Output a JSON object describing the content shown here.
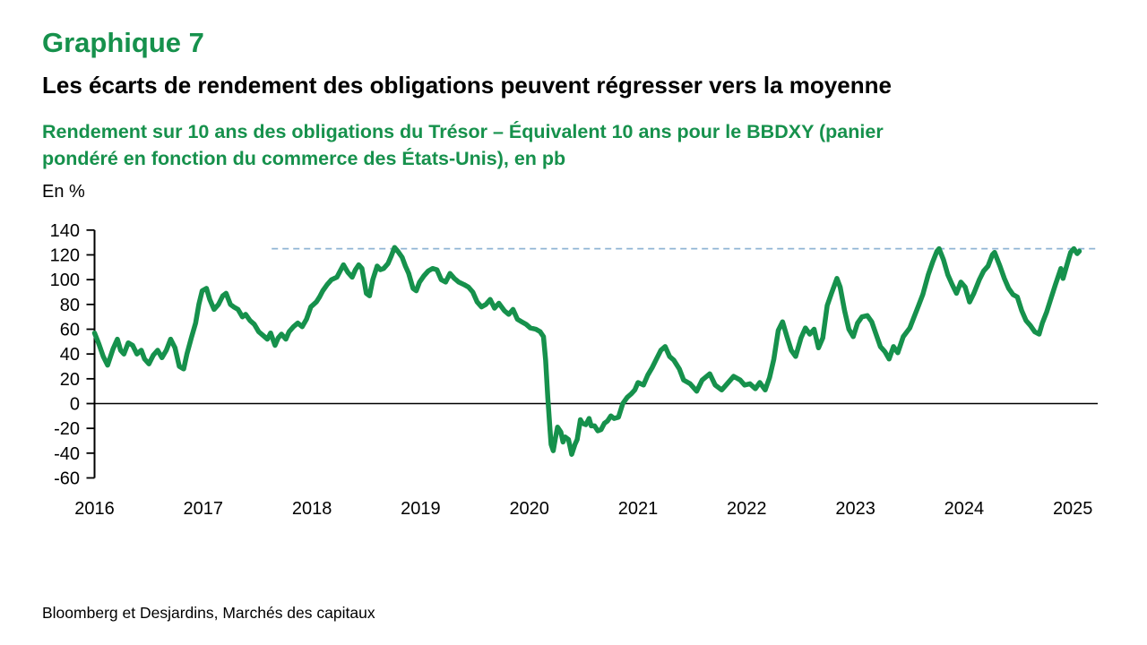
{
  "header": {
    "chart_number": "Graphique 7",
    "title": "Les écarts de rendement des obligations peuvent régresser vers la moyenne",
    "subtitle": "Rendement sur 10 ans des obligations du Trésor – Équivalent 10 ans pour le BBDXY (panier pondéré en fonction du commerce des États-Unis), en pb",
    "unit_label": "En %"
  },
  "footer": {
    "source": "Bloomberg et Desjardins, Marchés des capitaux"
  },
  "colors": {
    "brand_green": "#16914C",
    "reference_blue": "#8FB4D4",
    "axis_black": "#000000"
  },
  "chart_data": {
    "type": "line",
    "title": "Rendement sur 10 ans des obligations du Trésor – Équivalent 10 ans pour le BBDXY (panier pondéré en fonction du commerce des États-Unis), en pb",
    "ylabel": "En %",
    "xlabel": "",
    "ylim": [
      -60,
      140
    ],
    "xlim": [
      2016,
      2025.25
    ],
    "grid": false,
    "legend_position": "none",
    "y_ticks": [
      140,
      120,
      100,
      80,
      60,
      40,
      20,
      0,
      -20,
      -40,
      -60
    ],
    "x_ticks": [
      "2016",
      "2017",
      "2018",
      "2019",
      "2020",
      "2021",
      "2022",
      "2023",
      "2024",
      "2025"
    ],
    "zero_line": true,
    "reference_line": {
      "value": 125,
      "x_start": 2017.63,
      "color": "#8FB4D4",
      "style": "dashed"
    },
    "series": [
      {
        "color": "#16914C",
        "points": [
          [
            2016.0,
            57
          ],
          [
            2016.04,
            48
          ],
          [
            2016.08,
            38
          ],
          [
            2016.12,
            31
          ],
          [
            2016.17,
            44
          ],
          [
            2016.21,
            52
          ],
          [
            2016.24,
            43
          ],
          [
            2016.27,
            40
          ],
          [
            2016.31,
            49
          ],
          [
            2016.35,
            47
          ],
          [
            2016.39,
            40
          ],
          [
            2016.43,
            43
          ],
          [
            2016.46,
            36
          ],
          [
            2016.5,
            32
          ],
          [
            2016.54,
            39
          ],
          [
            2016.58,
            43
          ],
          [
            2016.62,
            37
          ],
          [
            2016.66,
            43
          ],
          [
            2016.7,
            52
          ],
          [
            2016.74,
            45
          ],
          [
            2016.78,
            30
          ],
          [
            2016.82,
            28
          ],
          [
            2016.85,
            40
          ],
          [
            2016.89,
            53
          ],
          [
            2016.93,
            65
          ],
          [
            2016.96,
            80
          ],
          [
            2016.99,
            91
          ],
          [
            2017.03,
            93
          ],
          [
            2017.06,
            84
          ],
          [
            2017.1,
            76
          ],
          [
            2017.14,
            80
          ],
          [
            2017.18,
            87
          ],
          [
            2017.21,
            89
          ],
          [
            2017.25,
            80
          ],
          [
            2017.28,
            78
          ],
          [
            2017.32,
            76
          ],
          [
            2017.36,
            70
          ],
          [
            2017.39,
            72
          ],
          [
            2017.43,
            67
          ],
          [
            2017.47,
            64
          ],
          [
            2017.51,
            58
          ],
          [
            2017.55,
            55
          ],
          [
            2017.59,
            52
          ],
          [
            2017.62,
            57
          ],
          [
            2017.66,
            47
          ],
          [
            2017.69,
            53
          ],
          [
            2017.72,
            56
          ],
          [
            2017.76,
            52
          ],
          [
            2017.79,
            58
          ],
          [
            2017.83,
            62
          ],
          [
            2017.87,
            65
          ],
          [
            2017.91,
            62
          ],
          [
            2017.95,
            68
          ],
          [
            2017.99,
            78
          ],
          [
            2018.04,
            82
          ],
          [
            2018.07,
            86
          ],
          [
            2018.1,
            91
          ],
          [
            2018.14,
            96
          ],
          [
            2018.18,
            100
          ],
          [
            2018.23,
            102
          ],
          [
            2018.26,
            107
          ],
          [
            2018.29,
            112
          ],
          [
            2018.33,
            106
          ],
          [
            2018.37,
            102
          ],
          [
            2018.4,
            108
          ],
          [
            2018.43,
            112
          ],
          [
            2018.46,
            109
          ],
          [
            2018.5,
            89
          ],
          [
            2018.53,
            87
          ],
          [
            2018.56,
            100
          ],
          [
            2018.6,
            111
          ],
          [
            2018.63,
            108
          ],
          [
            2018.66,
            109
          ],
          [
            2018.7,
            113
          ],
          [
            2018.73,
            119
          ],
          [
            2018.76,
            126
          ],
          [
            2018.79,
            123
          ],
          [
            2018.83,
            118
          ],
          [
            2018.86,
            111
          ],
          [
            2018.89,
            105
          ],
          [
            2018.93,
            93
          ],
          [
            2018.96,
            91
          ],
          [
            2018.99,
            98
          ],
          [
            2019.03,
            103
          ],
          [
            2019.07,
            107
          ],
          [
            2019.11,
            109
          ],
          [
            2019.15,
            108
          ],
          [
            2019.19,
            100
          ],
          [
            2019.23,
            98
          ],
          [
            2019.27,
            105
          ],
          [
            2019.31,
            101
          ],
          [
            2019.35,
            98
          ],
          [
            2019.4,
            96
          ],
          [
            2019.44,
            94
          ],
          [
            2019.48,
            90
          ],
          [
            2019.52,
            82
          ],
          [
            2019.56,
            78
          ],
          [
            2019.6,
            80
          ],
          [
            2019.64,
            84
          ],
          [
            2019.68,
            77
          ],
          [
            2019.72,
            81
          ],
          [
            2019.77,
            75
          ],
          [
            2019.81,
            72
          ],
          [
            2019.85,
            76
          ],
          [
            2019.89,
            68
          ],
          [
            2019.93,
            66
          ],
          [
            2019.97,
            64
          ],
          [
            2020.01,
            61
          ],
          [
            2020.06,
            60
          ],
          [
            2020.1,
            58
          ],
          [
            2020.13,
            54
          ],
          [
            2020.15,
            35
          ],
          [
            2020.17,
            5
          ],
          [
            2020.19,
            -20
          ],
          [
            2020.2,
            -33
          ],
          [
            2020.22,
            -38
          ],
          [
            2020.24,
            -28
          ],
          [
            2020.26,
            -19
          ],
          [
            2020.29,
            -23
          ],
          [
            2020.31,
            -31
          ],
          [
            2020.33,
            -27
          ],
          [
            2020.36,
            -29
          ],
          [
            2020.39,
            -41
          ],
          [
            2020.42,
            -33
          ],
          [
            2020.44,
            -29
          ],
          [
            2020.47,
            -13
          ],
          [
            2020.49,
            -16
          ],
          [
            2020.52,
            -17
          ],
          [
            2020.55,
            -12
          ],
          [
            2020.57,
            -18
          ],
          [
            2020.6,
            -18
          ],
          [
            2020.63,
            -22
          ],
          [
            2020.66,
            -21
          ],
          [
            2020.69,
            -16
          ],
          [
            2020.72,
            -14
          ],
          [
            2020.75,
            -10
          ],
          [
            2020.78,
            -12
          ],
          [
            2020.82,
            -11
          ],
          [
            2020.86,
            0
          ],
          [
            2020.9,
            5
          ],
          [
            2020.94,
            8
          ],
          [
            2020.97,
            11
          ],
          [
            2021.0,
            17
          ],
          [
            2021.05,
            15
          ],
          [
            2021.09,
            23
          ],
          [
            2021.13,
            29
          ],
          [
            2021.17,
            36
          ],
          [
            2021.21,
            43
          ],
          [
            2021.25,
            46
          ],
          [
            2021.29,
            38
          ],
          [
            2021.33,
            35
          ],
          [
            2021.38,
            28
          ],
          [
            2021.42,
            19
          ],
          [
            2021.48,
            16
          ],
          [
            2021.54,
            10
          ],
          [
            2021.59,
            19
          ],
          [
            2021.66,
            24
          ],
          [
            2021.71,
            15
          ],
          [
            2021.77,
            11
          ],
          [
            2021.83,
            17
          ],
          [
            2021.88,
            22
          ],
          [
            2021.94,
            19
          ],
          [
            2021.98,
            15
          ],
          [
            2022.03,
            16
          ],
          [
            2022.08,
            12
          ],
          [
            2022.12,
            17
          ],
          [
            2022.17,
            11
          ],
          [
            2022.21,
            21
          ],
          [
            2022.25,
            36
          ],
          [
            2022.29,
            59
          ],
          [
            2022.33,
            66
          ],
          [
            2022.37,
            54
          ],
          [
            2022.41,
            43
          ],
          [
            2022.45,
            38
          ],
          [
            2022.5,
            53
          ],
          [
            2022.54,
            61
          ],
          [
            2022.58,
            56
          ],
          [
            2022.62,
            60
          ],
          [
            2022.66,
            45
          ],
          [
            2022.7,
            53
          ],
          [
            2022.74,
            79
          ],
          [
            2022.78,
            89
          ],
          [
            2022.83,
            101
          ],
          [
            2022.86,
            94
          ],
          [
            2022.9,
            75
          ],
          [
            2022.94,
            60
          ],
          [
            2022.98,
            54
          ],
          [
            2023.02,
            65
          ],
          [
            2023.06,
            70
          ],
          [
            2023.11,
            71
          ],
          [
            2023.15,
            66
          ],
          [
            2023.19,
            56
          ],
          [
            2023.23,
            46
          ],
          [
            2023.27,
            42
          ],
          [
            2023.31,
            36
          ],
          [
            2023.35,
            46
          ],
          [
            2023.39,
            41
          ],
          [
            2023.44,
            54
          ],
          [
            2023.5,
            61
          ],
          [
            2023.54,
            70
          ],
          [
            2023.58,
            79
          ],
          [
            2023.62,
            88
          ],
          [
            2023.67,
            104
          ],
          [
            2023.71,
            114
          ],
          [
            2023.75,
            123
          ],
          [
            2023.77,
            125
          ],
          [
            2023.81,
            116
          ],
          [
            2023.85,
            104
          ],
          [
            2023.89,
            96
          ],
          [
            2023.93,
            89
          ],
          [
            2023.97,
            98
          ],
          [
            2024.01,
            94
          ],
          [
            2024.05,
            82
          ],
          [
            2024.09,
            89
          ],
          [
            2024.14,
            100
          ],
          [
            2024.18,
            107
          ],
          [
            2024.22,
            111
          ],
          [
            2024.26,
            120
          ],
          [
            2024.28,
            122
          ],
          [
            2024.33,
            111
          ],
          [
            2024.37,
            101
          ],
          [
            2024.41,
            93
          ],
          [
            2024.45,
            88
          ],
          [
            2024.49,
            86
          ],
          [
            2024.53,
            75
          ],
          [
            2024.57,
            67
          ],
          [
            2024.61,
            63
          ],
          [
            2024.65,
            58
          ],
          [
            2024.69,
            56
          ],
          [
            2024.72,
            65
          ],
          [
            2024.76,
            74
          ],
          [
            2024.8,
            85
          ],
          [
            2024.84,
            96
          ],
          [
            2024.89,
            109
          ],
          [
            2024.91,
            101
          ],
          [
            2024.93,
            107
          ],
          [
            2024.96,
            116
          ],
          [
            2024.98,
            122
          ],
          [
            2025.01,
            125
          ],
          [
            2025.04,
            121
          ],
          [
            2025.06,
            123
          ]
        ]
      }
    ]
  }
}
